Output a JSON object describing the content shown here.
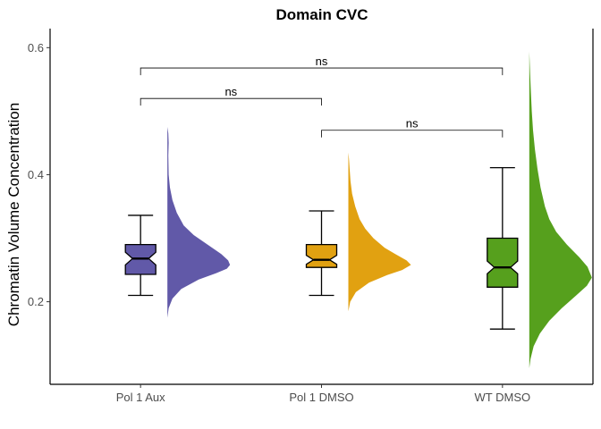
{
  "chart_data": {
    "type": "raincloud",
    "title": "Domain CVC",
    "xlabel": "",
    "ylabel": "Chromatin Volume Concentration",
    "categories": [
      "Pol 1 Aux",
      "Pol 1 DMSO",
      "WT DMSO"
    ],
    "ylim": [
      0.07,
      0.63
    ],
    "yticks": [
      0.2,
      0.4,
      0.6
    ],
    "grid": false,
    "legend": "none",
    "groups": [
      {
        "name": "Pol 1 Aux",
        "color": "#6159a8",
        "box": {
          "lower_whisker": 0.21,
          "q1": 0.243,
          "median": 0.268,
          "q3": 0.29,
          "upper_whisker": 0.336,
          "notch_low": 0.258,
          "notch_high": 0.278
        },
        "density": {
          "min": 0.175,
          "max": 0.475,
          "mode": 0.258,
          "profile": [
            [
              0.175,
              0.0
            ],
            [
              0.19,
              0.02
            ],
            [
              0.205,
              0.08
            ],
            [
              0.22,
              0.22
            ],
            [
              0.235,
              0.5
            ],
            [
              0.245,
              0.78
            ],
            [
              0.252,
              0.95
            ],
            [
              0.258,
              1.0
            ],
            [
              0.265,
              0.97
            ],
            [
              0.275,
              0.86
            ],
            [
              0.29,
              0.64
            ],
            [
              0.305,
              0.42
            ],
            [
              0.32,
              0.26
            ],
            [
              0.34,
              0.15
            ],
            [
              0.36,
              0.08
            ],
            [
              0.38,
              0.04
            ],
            [
              0.4,
              0.02
            ],
            [
              0.43,
              0.015
            ],
            [
              0.45,
              0.02
            ],
            [
              0.465,
              0.015
            ],
            [
              0.475,
              0.0
            ]
          ]
        }
      },
      {
        "name": "Pol 1 DMSO",
        "color": "#e1a111",
        "box": {
          "lower_whisker": 0.21,
          "q1": 0.254,
          "median": 0.266,
          "q3": 0.29,
          "upper_whisker": 0.343,
          "notch_low": 0.259,
          "notch_high": 0.273
        },
        "density": {
          "min": 0.185,
          "max": 0.435,
          "mode": 0.258,
          "profile": [
            [
              0.185,
              0.0
            ],
            [
              0.2,
              0.03
            ],
            [
              0.215,
              0.12
            ],
            [
              0.23,
              0.33
            ],
            [
              0.242,
              0.62
            ],
            [
              0.25,
              0.86
            ],
            [
              0.258,
              1.0
            ],
            [
              0.265,
              0.93
            ],
            [
              0.275,
              0.75
            ],
            [
              0.285,
              0.58
            ],
            [
              0.3,
              0.4
            ],
            [
              0.315,
              0.27
            ],
            [
              0.33,
              0.18
            ],
            [
              0.35,
              0.11
            ],
            [
              0.37,
              0.06
            ],
            [
              0.39,
              0.035
            ],
            [
              0.41,
              0.02
            ],
            [
              0.425,
              0.01
            ],
            [
              0.435,
              0.0
            ]
          ]
        }
      },
      {
        "name": "WT DMSO",
        "color": "#56a01d",
        "box": {
          "lower_whisker": 0.157,
          "q1": 0.223,
          "median": 0.254,
          "q3": 0.3,
          "upper_whisker": 0.411,
          "notch_low": 0.244,
          "notch_high": 0.264
        },
        "density": {
          "min": 0.095,
          "max": 0.595,
          "mode": 0.238,
          "profile": [
            [
              0.095,
              0.0
            ],
            [
              0.11,
              0.02
            ],
            [
              0.13,
              0.07
            ],
            [
              0.15,
              0.17
            ],
            [
              0.17,
              0.32
            ],
            [
              0.19,
              0.52
            ],
            [
              0.21,
              0.75
            ],
            [
              0.225,
              0.92
            ],
            [
              0.238,
              1.0
            ],
            [
              0.255,
              0.93
            ],
            [
              0.27,
              0.8
            ],
            [
              0.29,
              0.6
            ],
            [
              0.31,
              0.43
            ],
            [
              0.33,
              0.32
            ],
            [
              0.35,
              0.25
            ],
            [
              0.38,
              0.18
            ],
            [
              0.41,
              0.13
            ],
            [
              0.44,
              0.09
            ],
            [
              0.47,
              0.06
            ],
            [
              0.5,
              0.04
            ],
            [
              0.53,
              0.025
            ],
            [
              0.56,
              0.012
            ],
            [
              0.58,
              0.005
            ],
            [
              0.595,
              0.0
            ]
          ]
        }
      }
    ],
    "comparisons": [
      {
        "from": "Pol 1 Aux",
        "to": "WT DMSO",
        "label": "ns",
        "y": 0.568
      },
      {
        "from": "Pol 1 Aux",
        "to": "Pol 1 DMSO",
        "label": "ns",
        "y": 0.52
      },
      {
        "from": "Pol 1 DMSO",
        "to": "WT DMSO",
        "label": "ns",
        "y": 0.47
      }
    ]
  }
}
